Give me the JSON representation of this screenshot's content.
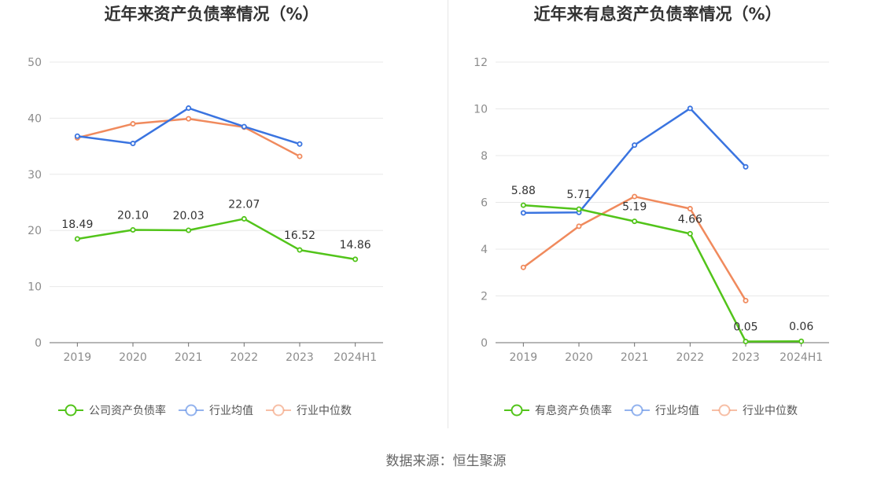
{
  "source": "数据来源：恒生聚源",
  "chart_data": [
    {
      "type": "line",
      "title": "近年来资产负债率情况（%）",
      "categories": [
        "2019",
        "2020",
        "2021",
        "2022",
        "2023",
        "2024H1"
      ],
      "ylim": [
        0,
        50
      ],
      "yticks": [
        0,
        10,
        20,
        30,
        40,
        50
      ],
      "grid": true,
      "legend": "bottom",
      "series": [
        {
          "name": "公司资产负债率",
          "color": "#52c41a",
          "values": [
            18.49,
            20.1,
            20.03,
            22.07,
            16.52,
            14.86
          ],
          "labels": [
            "18.49",
            "20.10",
            "20.03",
            "22.07",
            "16.52",
            "14.86"
          ]
        },
        {
          "name": "行业均值",
          "color": "#3a74e0",
          "values": [
            36.8,
            35.5,
            41.8,
            38.5,
            35.4,
            null
          ]
        },
        {
          "name": "行业中位数",
          "color": "#f08a5d",
          "values": [
            36.5,
            39.0,
            39.9,
            38.4,
            33.2,
            null
          ]
        }
      ]
    },
    {
      "type": "line",
      "title": "近年来有息资产负债率情况（%）",
      "categories": [
        "2019",
        "2020",
        "2021",
        "2022",
        "2023",
        "2024H1"
      ],
      "ylim": [
        0,
        12
      ],
      "yticks": [
        0,
        2,
        4,
        6,
        8,
        10,
        12
      ],
      "grid": true,
      "legend": "bottom",
      "series": [
        {
          "name": "有息资产负债率",
          "color": "#52c41a",
          "values": [
            5.88,
            5.71,
            5.19,
            4.66,
            0.05,
            0.06
          ],
          "labels": [
            "5.88",
            "5.71",
            "5.19",
            "4.66",
            "0.05",
            "0.06"
          ]
        },
        {
          "name": "行业均值",
          "color": "#3a74e0",
          "values": [
            5.55,
            5.57,
            8.45,
            10.02,
            7.52,
            null
          ]
        },
        {
          "name": "行业中位数",
          "color": "#f08a5d",
          "values": [
            3.22,
            4.98,
            6.25,
            5.73,
            1.8,
            null
          ]
        }
      ]
    }
  ]
}
